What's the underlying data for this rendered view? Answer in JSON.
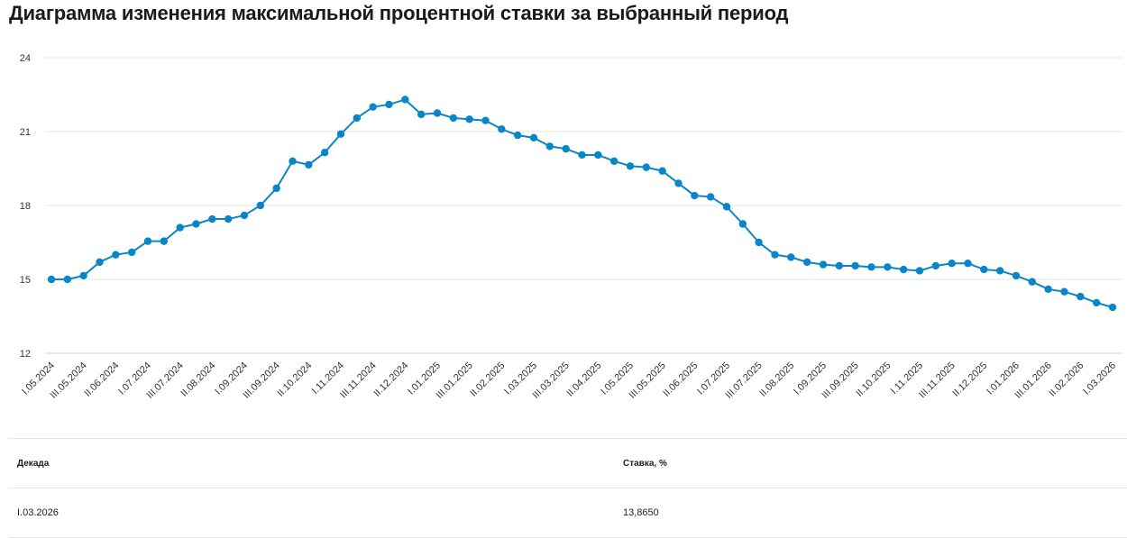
{
  "title": "Диаграмма изменения максимальной процентной ставки за выбранный период",
  "chart_data": {
    "type": "line",
    "title": "Диаграмма изменения максимальной процентной ставки за выбранный период",
    "xlabel": "Декада",
    "ylabel": "Ставка, %",
    "ylim": [
      12,
      24
    ],
    "yticks": [
      "12",
      "15",
      "18",
      "21",
      "24"
    ],
    "grid": true,
    "color": "#0a86c8",
    "x_tick_labels": [
      "I.05.2024",
      "III.05.2024",
      "II.06.2024",
      "I.07.2024",
      "III.07.2024",
      "II.08.2024",
      "I.09.2024",
      "III.09.2024",
      "II.10.2024",
      "I.11.2024",
      "III.11.2024",
      "II.12.2024",
      "I.01.2025",
      "III.01.2025",
      "II.02.2025",
      "I.03.2025",
      "III.03.2025",
      "II.04.2025",
      "I.05.2025",
      "III.05.2025",
      "II.06.2025",
      "I.07.2025",
      "III.07.2025",
      "II.08.2025",
      "I.09.2025",
      "III.09.2025",
      "II.10.2025",
      "I.11.2025",
      "III.11.2025",
      "II.12.2025",
      "I.01.2026",
      "III.01.2026",
      "II.02.2026",
      "I.03.2026"
    ],
    "values": [
      15.0,
      15.0,
      15.15,
      15.7,
      16.0,
      16.1,
      16.55,
      16.55,
      17.1,
      17.25,
      17.45,
      17.45,
      17.6,
      18.0,
      18.7,
      19.8,
      19.65,
      20.15,
      20.9,
      21.55,
      22.0,
      22.1,
      22.3,
      21.7,
      21.75,
      21.55,
      21.5,
      21.45,
      21.1,
      20.85,
      20.75,
      20.4,
      20.3,
      20.05,
      20.05,
      19.8,
      19.6,
      19.55,
      19.4,
      18.9,
      18.4,
      18.35,
      17.95,
      17.25,
      16.5,
      16.0,
      15.9,
      15.7,
      15.6,
      15.55,
      15.55,
      15.5,
      15.5,
      15.4,
      15.35,
      15.55,
      15.65,
      15.65,
      15.4,
      15.35,
      15.15,
      14.9,
      14.6,
      14.5,
      14.3,
      14.05,
      13.865
    ]
  },
  "table": {
    "headers": [
      "Декада",
      "Ставка, %"
    ],
    "rows": [
      [
        "I.03.2026",
        "13,8650"
      ]
    ]
  }
}
